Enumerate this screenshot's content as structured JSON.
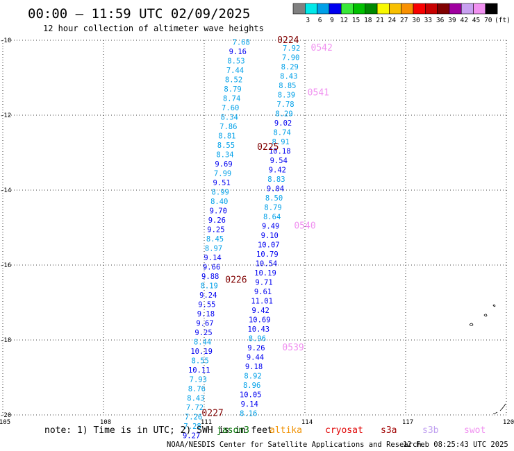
{
  "header": {
    "title": "00:00 – 11:59 UTC 02/09/2025",
    "subtitle": "12 hour collection of altimeter wave heights"
  },
  "colorbar": {
    "unit": "(ft)",
    "labels": [
      "3",
      "6",
      "9",
      "12",
      "15",
      "18",
      "21",
      "24",
      "27",
      "30",
      "33",
      "36",
      "39",
      "42",
      "45",
      "70"
    ],
    "colors": [
      "#808080",
      "#00e8e8",
      "#00a0e8",
      "#0000f0",
      "#38e838",
      "#00c000",
      "#008800",
      "#f8f800",
      "#f8c000",
      "#f89000",
      "#f80000",
      "#c80000",
      "#800000",
      "#a000a0",
      "#c8a0f0",
      "#f090f0",
      "#000000"
    ]
  },
  "footer": {
    "note": "note: 1) Time is in UTC; 2) SWH is in feet",
    "legend": [
      {
        "label": "jason3",
        "color": "#007000"
      },
      {
        "label": "altika",
        "color": "#f09000"
      },
      {
        "label": "cryosat",
        "color": "#e00000"
      },
      {
        "label": "s3a",
        "color": "#a00000"
      },
      {
        "label": "s3b",
        "color": "#c0a0f0"
      },
      {
        "label": "swot",
        "color": "#f090f0"
      }
    ],
    "credit": "NOAA/NESDIS Center for Satellite Applications and Research",
    "timestamp": "12 Feb 08:25:43 UTC 2025"
  },
  "chart_data": {
    "type": "scatter",
    "xlim": [
      105,
      120
    ],
    "ylim": [
      -20,
      -10
    ],
    "x_ticks": [
      105,
      108,
      111,
      114,
      117,
      120
    ],
    "y_ticks": [
      -10,
      -12,
      -14,
      -16,
      -18,
      -20
    ],
    "x_tick_labels": [
      "105",
      "108",
      "111",
      "114",
      "117",
      "120"
    ],
    "y_tick_labels": [
      "-10",
      "-12",
      "-14",
      "-16",
      "-18",
      "-20"
    ],
    "grid": true,
    "unit": "ft",
    "series": [
      {
        "track": "left",
        "points": [
          {
            "x": 112.1,
            "y": -10.05,
            "v": "7.68",
            "c": "#00a0e8"
          },
          {
            "x": 112.0,
            "y": -10.3,
            "v": "9.16",
            "c": "#0000f0"
          },
          {
            "x": 111.95,
            "y": -10.55,
            "v": "8.53",
            "c": "#00a0e8"
          },
          {
            "x": 111.92,
            "y": -10.8,
            "v": "7.44",
            "c": "#00a0e8"
          },
          {
            "x": 111.88,
            "y": -11.05,
            "v": "8.52",
            "c": "#00a0e8"
          },
          {
            "x": 111.85,
            "y": -11.3,
            "v": "8.79",
            "c": "#00a0e8"
          },
          {
            "x": 111.82,
            "y": -11.55,
            "v": "8.74",
            "c": "#00a0e8"
          },
          {
            "x": 111.78,
            "y": -11.8,
            "v": "7.60",
            "c": "#00a0e8"
          },
          {
            "x": 111.75,
            "y": -12.05,
            "v": "8.34",
            "c": "#00a0e8"
          },
          {
            "x": 111.72,
            "y": -12.3,
            "v": "7.86",
            "c": "#00a0e8"
          },
          {
            "x": 111.68,
            "y": -12.55,
            "v": "8.81",
            "c": "#00a0e8"
          },
          {
            "x": 111.65,
            "y": -12.8,
            "v": "8.55",
            "c": "#00a0e8"
          },
          {
            "x": 111.62,
            "y": -13.05,
            "v": "8.34",
            "c": "#00a0e8"
          },
          {
            "x": 111.58,
            "y": -13.3,
            "v": "9.69",
            "c": "#0000f0"
          },
          {
            "x": 111.55,
            "y": -13.55,
            "v": "7.99",
            "c": "#00a0e8"
          },
          {
            "x": 111.52,
            "y": -13.8,
            "v": "9.51",
            "c": "#0000f0"
          },
          {
            "x": 111.48,
            "y": -14.05,
            "v": "8.99",
            "c": "#00a0e8"
          },
          {
            "x": 111.45,
            "y": -14.3,
            "v": "8.40",
            "c": "#00a0e8"
          },
          {
            "x": 111.42,
            "y": -14.55,
            "v": "9.70",
            "c": "#0000f0"
          },
          {
            "x": 111.38,
            "y": -14.8,
            "v": "9.26",
            "c": "#0000f0"
          },
          {
            "x": 111.35,
            "y": -15.05,
            "v": "9.25",
            "c": "#0000f0"
          },
          {
            "x": 111.32,
            "y": -15.3,
            "v": "8.45",
            "c": "#00a0e8"
          },
          {
            "x": 111.28,
            "y": -15.55,
            "v": "8.97",
            "c": "#00a0e8"
          },
          {
            "x": 111.25,
            "y": -15.8,
            "v": "9.14",
            "c": "#0000f0"
          },
          {
            "x": 111.22,
            "y": -16.05,
            "v": "9.66",
            "c": "#0000f0"
          },
          {
            "x": 111.18,
            "y": -16.3,
            "v": "9.88",
            "c": "#0000f0"
          },
          {
            "x": 111.15,
            "y": -16.55,
            "v": "8.19",
            "c": "#00a0e8"
          },
          {
            "x": 111.12,
            "y": -16.8,
            "v": "9.24",
            "c": "#0000f0"
          },
          {
            "x": 111.08,
            "y": -17.05,
            "v": "9.55",
            "c": "#0000f0"
          },
          {
            "x": 111.05,
            "y": -17.3,
            "v": "9.18",
            "c": "#0000f0"
          },
          {
            "x": 111.02,
            "y": -17.55,
            "v": "9.67",
            "c": "#0000f0"
          },
          {
            "x": 110.98,
            "y": -17.8,
            "v": "9.25",
            "c": "#0000f0"
          },
          {
            "x": 110.95,
            "y": -18.05,
            "v": "8.44",
            "c": "#00a0e8"
          },
          {
            "x": 110.92,
            "y": -18.3,
            "v": "10.19",
            "c": "#0000f0"
          },
          {
            "x": 110.88,
            "y": -18.55,
            "v": "8.55",
            "c": "#00a0e8"
          },
          {
            "x": 110.85,
            "y": -18.8,
            "v": "10.11",
            "c": "#0000f0"
          },
          {
            "x": 110.82,
            "y": -19.05,
            "v": "7.93",
            "c": "#00a0e8"
          },
          {
            "x": 110.78,
            "y": -19.3,
            "v": "8.76",
            "c": "#00a0e8"
          },
          {
            "x": 110.75,
            "y": -19.55,
            "v": "8.43",
            "c": "#00a0e8"
          },
          {
            "x": 110.72,
            "y": -19.8,
            "v": "7.72",
            "c": "#00a0e8"
          },
          {
            "x": 110.68,
            "y": -20.05,
            "v": "7.26",
            "c": "#00a0e8"
          },
          {
            "x": 110.65,
            "y": -20.3,
            "v": "7.28",
            "c": "#00a0e8"
          },
          {
            "x": 110.62,
            "y": -20.55,
            "v": "9.27",
            "c": "#0000f0"
          }
        ]
      },
      {
        "track": "right",
        "points": [
          {
            "x": 113.6,
            "y": -10.2,
            "v": "7.92",
            "c": "#00a0e8"
          },
          {
            "x": 113.58,
            "y": -10.45,
            "v": "7.90",
            "c": "#00a0e8"
          },
          {
            "x": 113.55,
            "y": -10.7,
            "v": "8.29",
            "c": "#00a0e8"
          },
          {
            "x": 113.52,
            "y": -10.95,
            "v": "8.43",
            "c": "#00a0e8"
          },
          {
            "x": 113.48,
            "y": -11.2,
            "v": "8.85",
            "c": "#00a0e8"
          },
          {
            "x": 113.45,
            "y": -11.45,
            "v": "8.39",
            "c": "#00a0e8"
          },
          {
            "x": 113.42,
            "y": -11.7,
            "v": "7.78",
            "c": "#00a0e8"
          },
          {
            "x": 113.38,
            "y": -11.95,
            "v": "8.29",
            "c": "#00a0e8"
          },
          {
            "x": 113.35,
            "y": -12.2,
            "v": "9.02",
            "c": "#0000f0"
          },
          {
            "x": 113.32,
            "y": -12.45,
            "v": "8.74",
            "c": "#00a0e8"
          },
          {
            "x": 113.28,
            "y": -12.7,
            "v": "8.91",
            "c": "#00a0e8"
          },
          {
            "x": 113.25,
            "y": -12.95,
            "v": "10.18",
            "c": "#0000f0"
          },
          {
            "x": 113.22,
            "y": -13.2,
            "v": "9.54",
            "c": "#0000f0"
          },
          {
            "x": 113.18,
            "y": -13.45,
            "v": "9.42",
            "c": "#0000f0"
          },
          {
            "x": 113.15,
            "y": -13.7,
            "v": "8.83",
            "c": "#00a0e8"
          },
          {
            "x": 113.12,
            "y": -13.95,
            "v": "9.04",
            "c": "#0000f0"
          },
          {
            "x": 113.08,
            "y": -14.2,
            "v": "8.50",
            "c": "#00a0e8"
          },
          {
            "x": 113.05,
            "y": -14.45,
            "v": "8.79",
            "c": "#00a0e8"
          },
          {
            "x": 113.02,
            "y": -14.7,
            "v": "8.64",
            "c": "#00a0e8"
          },
          {
            "x": 112.98,
            "y": -14.95,
            "v": "9.49",
            "c": "#0000f0"
          },
          {
            "x": 112.95,
            "y": -15.2,
            "v": "9.10",
            "c": "#0000f0"
          },
          {
            "x": 112.92,
            "y": -15.45,
            "v": "10.07",
            "c": "#0000f0"
          },
          {
            "x": 112.88,
            "y": -15.7,
            "v": "10.79",
            "c": "#0000f0"
          },
          {
            "x": 112.85,
            "y": -15.95,
            "v": "10.54",
            "c": "#0000f0"
          },
          {
            "x": 112.82,
            "y": -16.2,
            "v": "10.19",
            "c": "#0000f0"
          },
          {
            "x": 112.78,
            "y": -16.45,
            "v": "9.71",
            "c": "#0000f0"
          },
          {
            "x": 112.75,
            "y": -16.7,
            "v": "9.61",
            "c": "#0000f0"
          },
          {
            "x": 112.72,
            "y": -16.95,
            "v": "11.01",
            "c": "#0000f0"
          },
          {
            "x": 112.68,
            "y": -17.2,
            "v": "9.42",
            "c": "#0000f0"
          },
          {
            "x": 112.65,
            "y": -17.45,
            "v": "10.69",
            "c": "#0000f0"
          },
          {
            "x": 112.62,
            "y": -17.7,
            "v": "10.43",
            "c": "#0000f0"
          },
          {
            "x": 112.58,
            "y": -17.95,
            "v": "8.96",
            "c": "#00a0e8"
          },
          {
            "x": 112.55,
            "y": -18.2,
            "v": "9.26",
            "c": "#0000f0"
          },
          {
            "x": 112.52,
            "y": -18.45,
            "v": "9.44",
            "c": "#0000f0"
          },
          {
            "x": 112.48,
            "y": -18.7,
            "v": "9.18",
            "c": "#0000f0"
          },
          {
            "x": 112.45,
            "y": -18.95,
            "v": "8.92",
            "c": "#00a0e8"
          },
          {
            "x": 112.42,
            "y": -19.2,
            "v": "8.96",
            "c": "#00a0e8"
          },
          {
            "x": 112.38,
            "y": -19.45,
            "v": "10.05",
            "c": "#0000f0"
          },
          {
            "x": 112.35,
            "y": -19.7,
            "v": "9.14",
            "c": "#0000f0"
          },
          {
            "x": 112.32,
            "y": -19.95,
            "v": "8.16",
            "c": "#00a0e8"
          }
        ]
      }
    ],
    "pass_labels": [
      {
        "label": "0224",
        "x": 113.5,
        "y": -10.0,
        "c": "#800000"
      },
      {
        "label": "0542",
        "x": 114.5,
        "y": -10.2,
        "c": "#f090f0"
      },
      {
        "label": "0541",
        "x": 114.4,
        "y": -11.4,
        "c": "#f090f0"
      },
      {
        "label": "0225",
        "x": 112.9,
        "y": -12.85,
        "c": "#800000"
      },
      {
        "label": "0540",
        "x": 114.0,
        "y": -14.95,
        "c": "#f090f0"
      },
      {
        "label": "0226",
        "x": 111.95,
        "y": -16.4,
        "c": "#800000"
      },
      {
        "label": "0539",
        "x": 113.65,
        "y": -18.2,
        "c": "#f090f0"
      },
      {
        "label": "0227",
        "x": 111.25,
        "y": -19.95,
        "c": "#800000"
      }
    ]
  }
}
